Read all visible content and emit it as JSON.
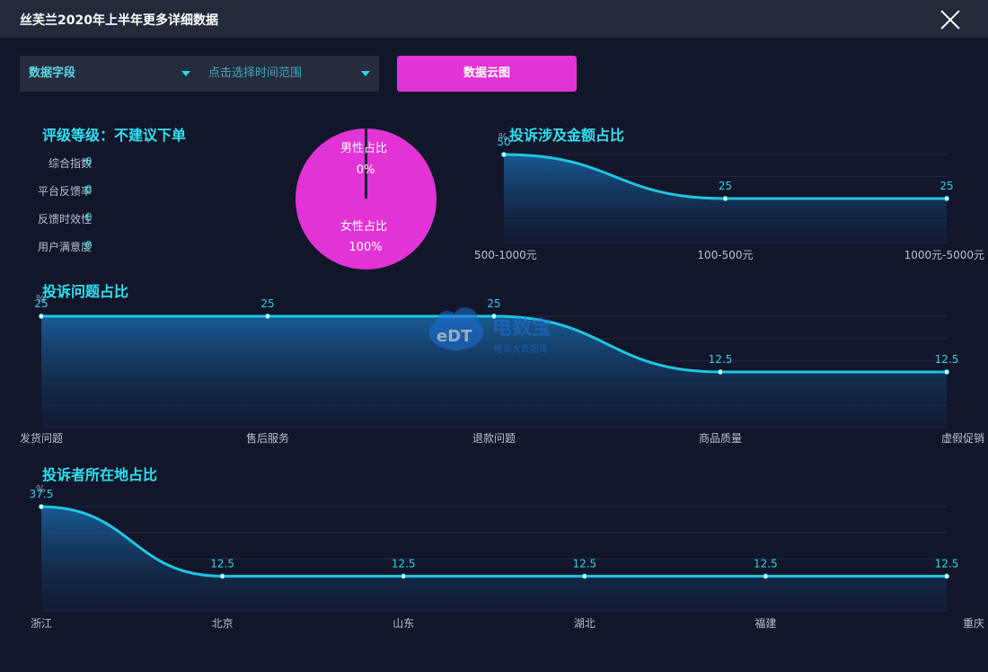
{
  "window": {
    "title": "丝芙兰2020年上半年更多详细数据"
  },
  "filters": {
    "field_label": "数据字段",
    "range_label": "点击选择时间范围",
    "cloud_button": "数据云图"
  },
  "rating": {
    "title": "评级等级：不建议下单",
    "metrics": [
      {
        "label": "综合指数",
        "value": "0"
      },
      {
        "label": "平台反馈率",
        "value": "0"
      },
      {
        "label": "反馈时效性",
        "value": "0"
      },
      {
        "label": "用户满意度",
        "value": "0"
      }
    ]
  },
  "gender_pie": {
    "male_label": "男性占比",
    "male_value": "0%",
    "female_label": "女性占比",
    "female_value": "100%",
    "male_share": 0,
    "female_share": 100,
    "color": "#e233d6"
  },
  "watermark": {
    "brand": "电数宝",
    "sub": "电商大数据库",
    "logo_text": "eDT"
  },
  "chart_data": [
    {
      "id": "amount",
      "type": "area",
      "title": "投诉涉及金额占比",
      "ylabel": "%",
      "xlabel": "",
      "categories": [
        "500-1000元",
        "100-500元",
        "1000元-5000元"
      ],
      "values": [
        50,
        25,
        25
      ],
      "value_labels": [
        "50",
        "25",
        "25"
      ],
      "ylim": [
        0,
        50
      ],
      "grid": true,
      "color": "#1fc6e0"
    },
    {
      "id": "issues",
      "type": "area",
      "title": "投诉问题占比",
      "ylabel": "%",
      "xlabel": "",
      "categories": [
        "发货问题",
        "售后服务",
        "退款问题",
        "商品质量",
        "虚假促销"
      ],
      "values": [
        25,
        25,
        25,
        12.5,
        12.5
      ],
      "value_labels": [
        "25",
        "25",
        "25",
        "12.5",
        "12.5"
      ],
      "ylim": [
        0,
        25
      ],
      "grid": true,
      "color": "#1fc6e0"
    },
    {
      "id": "location",
      "type": "area",
      "title": "投诉者所在地占比",
      "ylabel": "%",
      "xlabel": "",
      "categories": [
        "浙江",
        "北京",
        "山东",
        "湖北",
        "福建",
        "重庆"
      ],
      "values": [
        37.5,
        12.5,
        12.5,
        12.5,
        12.5,
        12.5
      ],
      "value_labels": [
        "37.5",
        "12.5",
        "12.5",
        "12.5",
        "12.5",
        "12.5"
      ],
      "ylim": [
        0,
        37.5
      ],
      "grid": true,
      "color": "#1fc6e0"
    }
  ]
}
